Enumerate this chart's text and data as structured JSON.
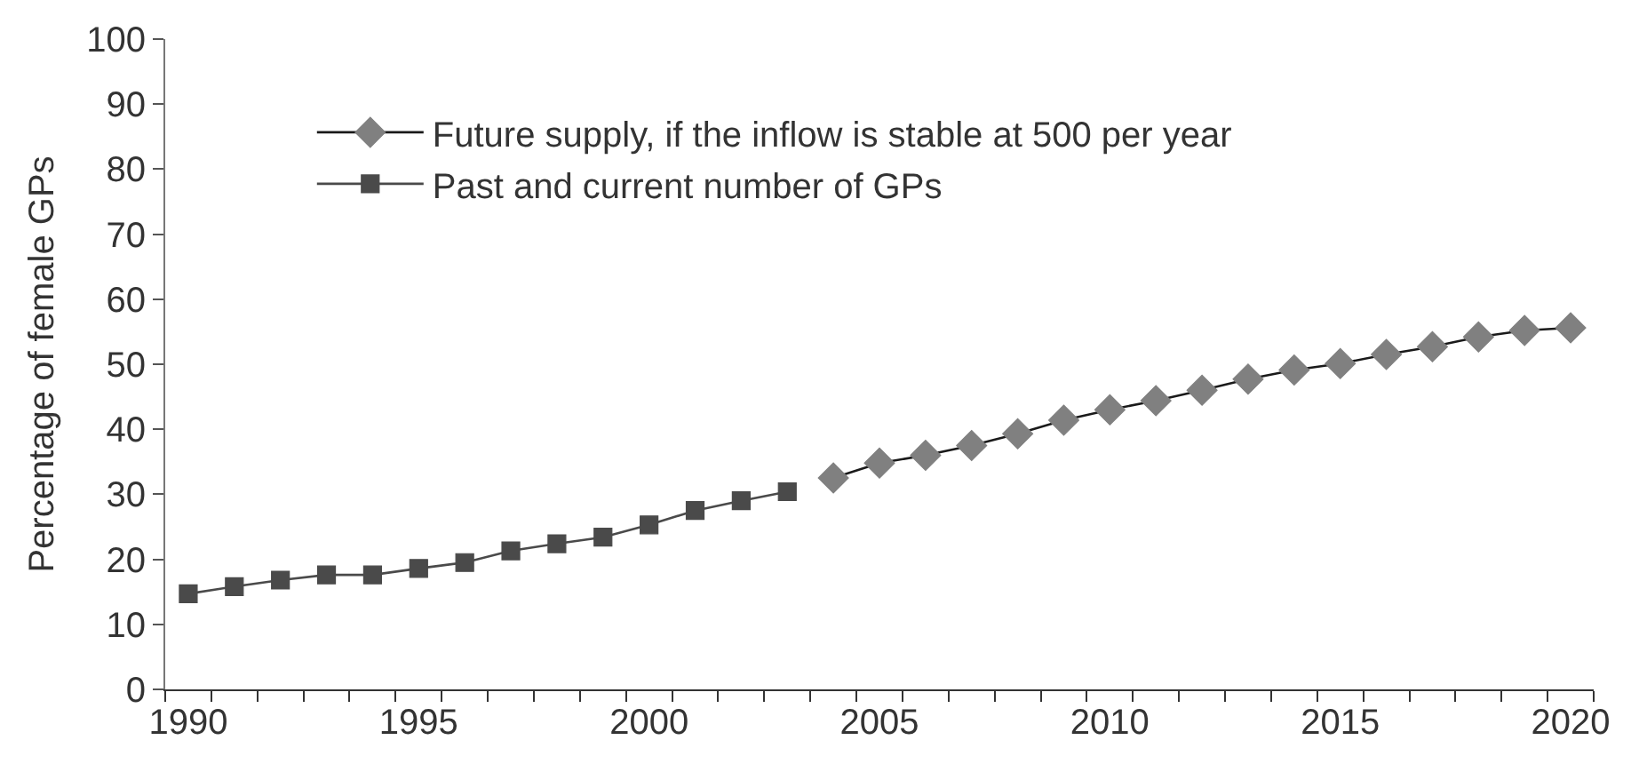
{
  "chart_data": {
    "type": "line",
    "ylabel": "Percentage of female GPs",
    "series": [
      {
        "name": "Future supply, if the inflow is stable at 500 per year",
        "color": "#808080",
        "marker": "diamond",
        "x": [
          2004,
          2005,
          2006,
          2007,
          2008,
          2009,
          2010,
          2011,
          2012,
          2013,
          2014,
          2015,
          2016,
          2017,
          2018,
          2019,
          2020
        ],
        "values": [
          32.5,
          34.8,
          36.0,
          37.5,
          39.3,
          41.4,
          43.0,
          44.4,
          46.0,
          47.7,
          49.1,
          50.1,
          51.5,
          52.7,
          54.2,
          55.2,
          55.6
        ]
      },
      {
        "name": "Past and current number of GPs",
        "color": "#4a4a4a",
        "marker": "square",
        "x": [
          1990,
          1991,
          1992,
          1993,
          1994,
          1995,
          1996,
          1997,
          1998,
          1999,
          2000,
          2001,
          2002,
          2003
        ],
        "values": [
          14.7,
          15.8,
          16.8,
          17.6,
          17.6,
          18.6,
          19.5,
          21.3,
          22.4,
          23.4,
          25.3,
          27.5,
          29.0,
          30.4
        ]
      }
    ],
    "xlim": [
      1989.5,
      2020.5
    ],
    "xticks": [
      1990,
      1995,
      2000,
      2005,
      2010,
      2015,
      2020,
      {
        "value": 1989.5,
        "label": null
      },
      {
        "value": 1990.5,
        "label": null
      },
      {
        "value": 1991.5,
        "label": null
      },
      {
        "value": 1992.5,
        "label": null
      },
      {
        "value": 1993.5,
        "label": null
      },
      {
        "value": 1994.5,
        "label": null
      },
      {
        "value": 1995.5,
        "label": null
      },
      {
        "value": 1996.5,
        "label": null
      },
      {
        "value": 1997.5,
        "label": null
      },
      {
        "value": 1998.5,
        "label": null
      },
      {
        "value": 1999.5,
        "label": null
      },
      {
        "value": 2000.5,
        "label": null
      },
      {
        "value": 2001.5,
        "label": null
      },
      {
        "value": 2002.5,
        "label": null
      },
      {
        "value": 2003.5,
        "label": null
      },
      {
        "value": 2004.5,
        "label": null
      },
      {
        "value": 2005.5,
        "label": null
      },
      {
        "value": 2006.5,
        "label": null
      },
      {
        "value": 2007.5,
        "label": null
      },
      {
        "value": 2008.5,
        "label": null
      },
      {
        "value": 2009.5,
        "label": null
      },
      {
        "value": 2010.5,
        "label": null
      },
      {
        "value": 2011.5,
        "label": null
      },
      {
        "value": 2012.5,
        "label": null
      },
      {
        "value": 2013.5,
        "label": null
      },
      {
        "value": 2014.5,
        "label": null
      },
      {
        "value": 2015.5,
        "label": null
      },
      {
        "value": 2016.5,
        "label": null
      },
      {
        "value": 2017.5,
        "label": null
      },
      {
        "value": 2018.5,
        "label": null
      },
      {
        "value": 2019.5,
        "label": null
      },
      {
        "value": 2020.5,
        "label": null
      }
    ],
    "ylim": [
      0,
      100
    ],
    "yticks": [
      0,
      10,
      20,
      30,
      40,
      50,
      60,
      70,
      80,
      90,
      100
    ],
    "grid": false,
    "legend": "top left",
    "line_style": "solid"
  }
}
